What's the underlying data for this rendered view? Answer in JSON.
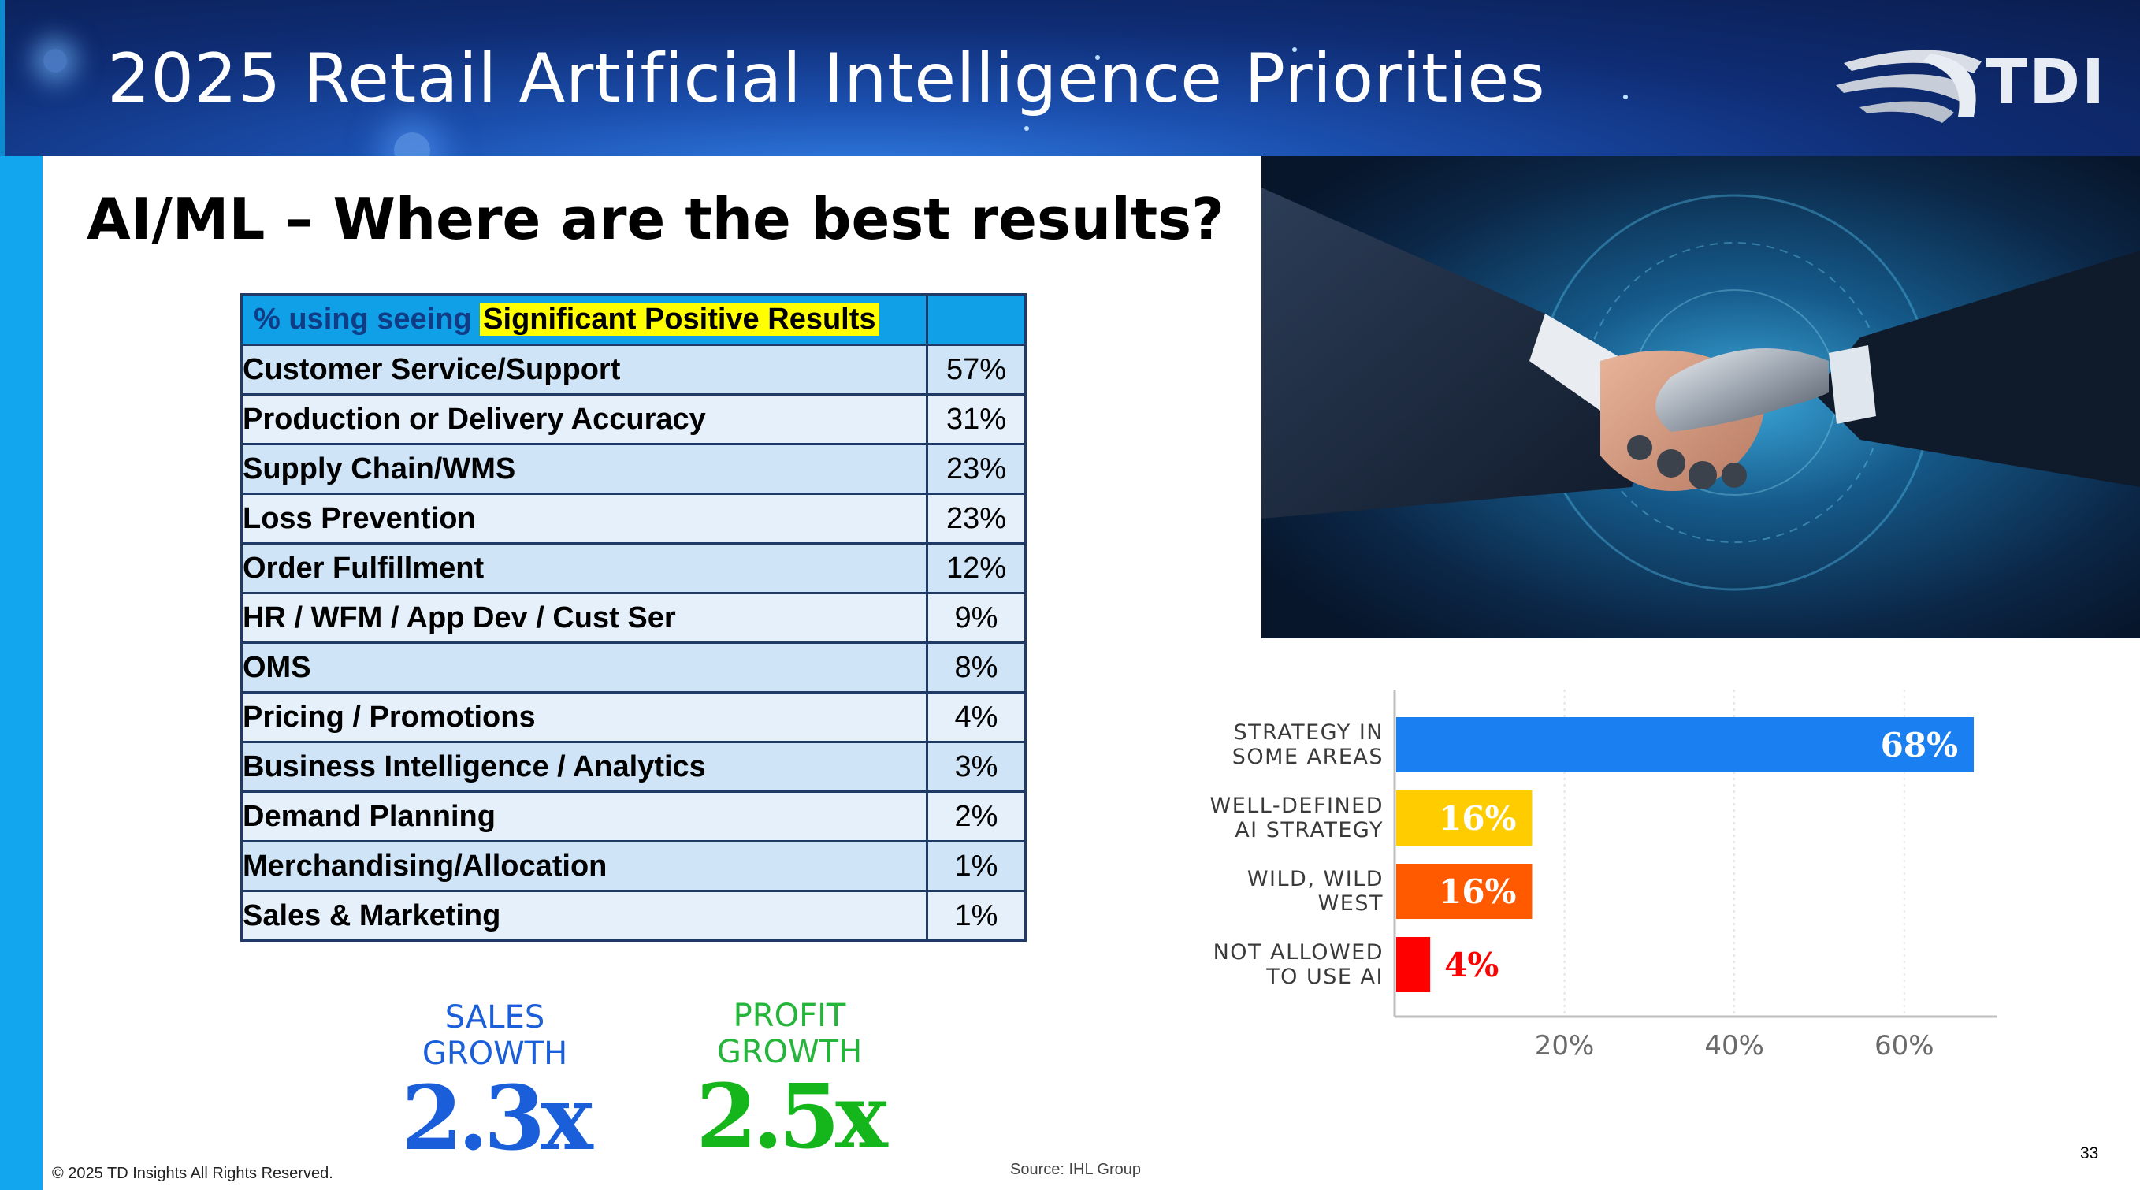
{
  "header": {
    "title": "2025 Retail Artificial Intelligence Priorities",
    "logo_text": "TDI"
  },
  "subtitle": "AI/ML – Where are the best results?",
  "table": {
    "header_prefix": "% using seeing ",
    "header_highlight": "Significant Positive Results",
    "rows": [
      {
        "label": "Customer Service/Support",
        "value": "57%"
      },
      {
        "label": "Production or Delivery Accuracy",
        "value": "31%"
      },
      {
        "label": "Supply Chain/WMS",
        "value": "23%"
      },
      {
        "label": "Loss Prevention",
        "value": "23%"
      },
      {
        "label": "Order Fulfillment",
        "value": "12%"
      },
      {
        "label": "HR / WFM / App Dev / Cust Ser",
        "value": "9%"
      },
      {
        "label": "OMS",
        "value": "8%"
      },
      {
        "label": "Pricing / Promotions",
        "value": "4%"
      },
      {
        "label": "Business Intelligence / Analytics",
        "value": "3%"
      },
      {
        "label": "Demand Planning",
        "value": "2%"
      },
      {
        "label": "Merchandising/Allocation",
        "value": "1%"
      },
      {
        "label": "Sales & Marketing",
        "value": "1%"
      }
    ]
  },
  "growth": {
    "sales": {
      "label_line1": "SALES",
      "label_line2": "GROWTH",
      "value": "2.3x"
    },
    "profit": {
      "label_line1": "PROFIT",
      "label_line2": "GROWTH",
      "value": "2.5x"
    }
  },
  "chart_data": {
    "type": "bar",
    "orientation": "horizontal",
    "categories": [
      [
        "STRATEGY IN",
        "SOME AREAS"
      ],
      [
        "WELL-DEFINED",
        "AI STRATEGY"
      ],
      [
        "WILD, WILD",
        "WEST"
      ],
      [
        "NOT ALLOWED",
        "TO USE AI"
      ]
    ],
    "values": [
      68,
      16,
      16,
      4
    ],
    "data_labels": [
      "68%",
      "16%",
      "16%",
      "4%"
    ],
    "colors": [
      "#1a7ff0",
      "#ffcc00",
      "#ff5a00",
      "#ff0000"
    ],
    "label_colors": [
      "#ffffff",
      "#ffffff",
      "#ffffff",
      "#ff0000"
    ],
    "xlim": [
      0,
      70
    ],
    "xticks": [
      20,
      40,
      60
    ],
    "xtick_labels": [
      "20%",
      "40%",
      "60%"
    ],
    "grid": true
  },
  "footer": {
    "copyright": "© 2025 TD Insights All Rights Reserved.",
    "source": "Source: IHL Group",
    "page_number": "33"
  }
}
